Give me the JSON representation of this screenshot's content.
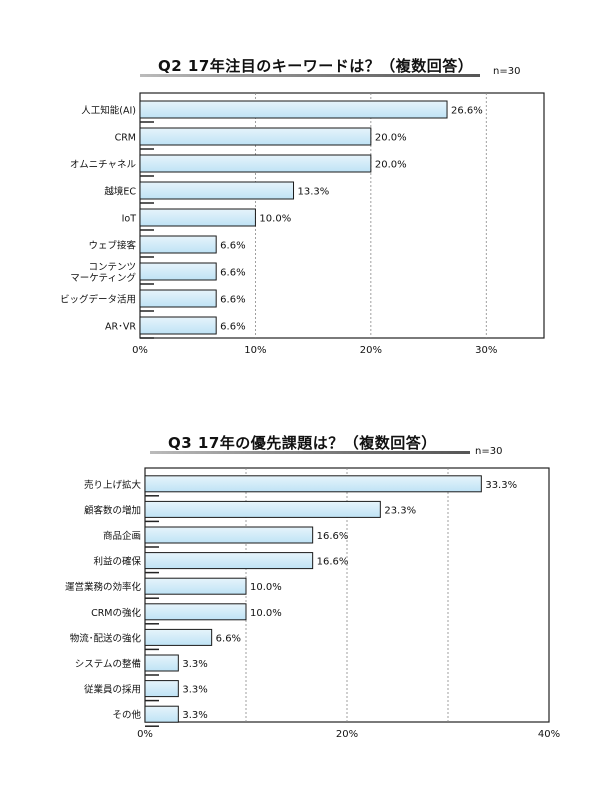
{
  "chart_data": [
    {
      "type": "bar",
      "orientation": "horizontal",
      "title": "Q2  17年注目のキーワードは？（複数回答）",
      "n_label": "n=30",
      "categories": [
        "人工知能(AI)",
        "CRM",
        "オムニチャネル",
        "越境EC",
        "IoT",
        "ウェブ接客",
        "コンテンツ\nマーケティング",
        "ビッグデータ活用",
        "AR･VR"
      ],
      "values": [
        26.6,
        20.0,
        20.0,
        13.3,
        10.0,
        6.6,
        6.6,
        6.6,
        6.6
      ],
      "value_labels": [
        "26.6%",
        "20.0%",
        "20.0%",
        "13.3%",
        "10.0%",
        "6.6%",
        "6.6%",
        "6.6%",
        "6.6%"
      ],
      "xlim": [
        0,
        35
      ],
      "xticks": [
        0,
        10,
        20,
        30
      ],
      "xtick_labels": [
        "0%",
        "10%",
        "20%",
        "30%"
      ],
      "grid": "vertical-dotted",
      "colors": {
        "bar": "#bfe3f5",
        "bar_top": "#e6f4fb",
        "bar_border": "#1a1a1a"
      }
    },
    {
      "type": "bar",
      "orientation": "horizontal",
      "title": "Q3  17年の優先課題は？（複数回答）",
      "n_label": "n=30",
      "categories": [
        "売り上げ拡大",
        "顧客数の増加",
        "商品企画",
        "利益の確保",
        "運営業務の効率化",
        "CRMの強化",
        "物流･配送の強化",
        "システムの整備",
        "従業員の採用",
        "その他"
      ],
      "values": [
        33.3,
        23.3,
        16.6,
        16.6,
        10.0,
        10.0,
        6.6,
        3.3,
        3.3,
        3.3
      ],
      "value_labels": [
        "33.3%",
        "23.3%",
        "16.6%",
        "16.6%",
        "10.0%",
        "10.0%",
        "6.6%",
        "3.3%",
        "3.3%",
        "3.3%"
      ],
      "xlim": [
        0,
        40
      ],
      "xticks": [
        0,
        20,
        40
      ],
      "xtick_labels": [
        "0%",
        "20%",
        "40%"
      ],
      "minor_gridlines": [
        10,
        30
      ],
      "grid": "vertical-dotted",
      "colors": {
        "bar": "#bfe3f5",
        "bar_top": "#e6f4fb",
        "bar_border": "#1a1a1a"
      }
    }
  ]
}
